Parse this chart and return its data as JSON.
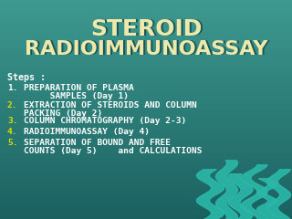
{
  "title_line1": "STEROID",
  "title_line2": "RADIOIMMUNOASSAY",
  "title_color": "#EEE8AA",
  "bg_color_top": "#3D9990",
  "bg_color_bottom": "#1A6060",
  "wave_color": "#2BB8A8",
  "steps_label": "Steps :",
  "steps_color": "#FFFFFF",
  "items": [
    {
      "num": "1.",
      "num_color": "#FFFFFF",
      "line1": "PREPARATION OF PLASMA",
      "line2": "     SAMPLES (Day 1)"
    },
    {
      "num": "2.",
      "num_color": "#DDDD00",
      "line1": "EXTRACTION OF STEROIDS AND COLUMN",
      "line2": "PACKING (Day 2)"
    },
    {
      "num": "3.",
      "num_color": "#DDDD00",
      "line1": "COLUMN CHROMATOGRAPHY (Day 2-3)",
      "line2": ""
    },
    {
      "num": "4.",
      "num_color": "#DDDD00",
      "line1": "RADIOIMMUNOASSAY (Day 4)",
      "line2": ""
    },
    {
      "num": "5.",
      "num_color": "#DDDD00",
      "line1": "SEPARATION OF BOUND AND FREE",
      "line2": "COUNTS (Day 5)    and CALCULATIONS"
    }
  ],
  "text_color": "#FFFFFF",
  "font_size_title1": 18,
  "font_size_title2": 16,
  "font_size_body": 6.8,
  "font_size_steps": 7.2
}
